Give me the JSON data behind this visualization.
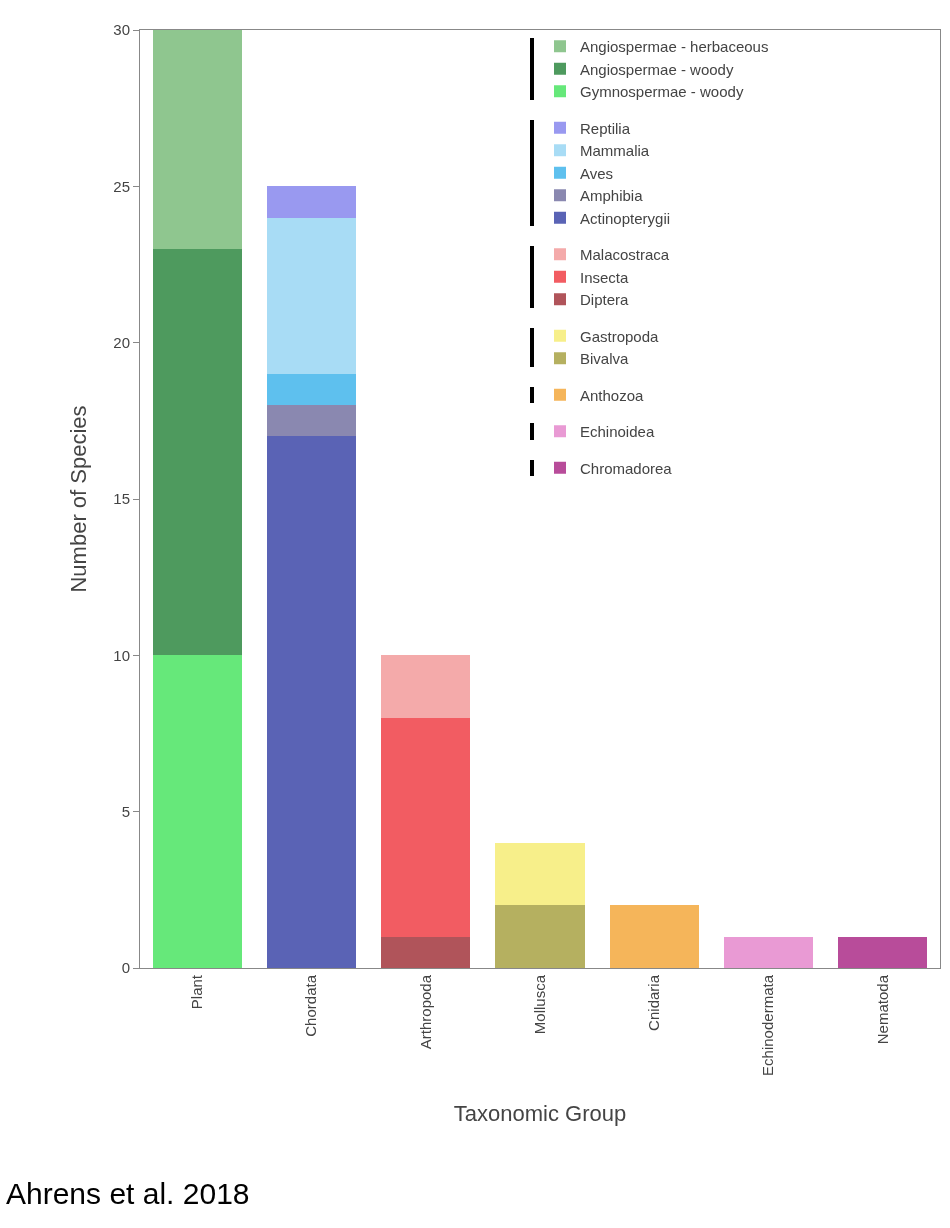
{
  "chart_data": {
    "type": "bar",
    "stacked": true,
    "xlabel": "Taxonomic Group",
    "ylabel": "Number of Species",
    "categories": [
      "Plant",
      "Chordata",
      "Arthropoda",
      "Mollusca",
      "Cnidaria",
      "Echinodermata",
      "Nematoda"
    ],
    "series": [
      {
        "name": "Gymnospermae - woody",
        "color": "#66e87a",
        "values": [
          10,
          null,
          null,
          null,
          null,
          null,
          null
        ]
      },
      {
        "name": "Angiospermae - woody",
        "color": "#4e9a5e",
        "values": [
          13,
          null,
          null,
          null,
          null,
          null,
          null
        ]
      },
      {
        "name": "Angiospermae - herbaceous",
        "color": "#8fc68f",
        "values": [
          7,
          null,
          null,
          null,
          null,
          null,
          null
        ]
      },
      {
        "name": "Actinopterygii",
        "color": "#5a63b5",
        "values": [
          null,
          17,
          null,
          null,
          null,
          null,
          null
        ]
      },
      {
        "name": "Amphibia",
        "color": "#8a88b0",
        "values": [
          null,
          1,
          null,
          null,
          null,
          null,
          null
        ]
      },
      {
        "name": "Aves",
        "color": "#5ec0ee",
        "values": [
          null,
          1,
          null,
          null,
          null,
          null,
          null
        ]
      },
      {
        "name": "Mammalia",
        "color": "#a8dcf5",
        "values": [
          null,
          5,
          null,
          null,
          null,
          null,
          null
        ]
      },
      {
        "name": "Reptilia",
        "color": "#9999f0",
        "values": [
          null,
          1,
          null,
          null,
          null,
          null,
          null
        ]
      },
      {
        "name": "Diptera",
        "color": "#b0545a",
        "values": [
          null,
          null,
          1,
          null,
          null,
          null,
          null
        ]
      },
      {
        "name": "Insecta",
        "color": "#f25c62",
        "values": [
          null,
          null,
          7,
          null,
          null,
          null,
          null
        ]
      },
      {
        "name": "Malacostraca",
        "color": "#f4aaaa",
        "values": [
          null,
          null,
          2,
          null,
          null,
          null,
          null
        ]
      },
      {
        "name": "Bivalva",
        "color": "#b5b060",
        "values": [
          null,
          null,
          null,
          2,
          null,
          null,
          null
        ]
      },
      {
        "name": "Gastropoda",
        "color": "#f7ef8a",
        "values": [
          null,
          null,
          null,
          2,
          null,
          null,
          null
        ]
      },
      {
        "name": "Anthozoa",
        "color": "#f5b55a",
        "values": [
          null,
          null,
          null,
          null,
          2,
          null,
          null
        ]
      },
      {
        "name": "Echinoidea",
        "color": "#e99ad4",
        "values": [
          null,
          null,
          null,
          null,
          null,
          1,
          null
        ]
      },
      {
        "name": "Chromadorea",
        "color": "#b84c9a",
        "values": [
          null,
          null,
          null,
          null,
          null,
          null,
          1
        ]
      }
    ],
    "ylim": [
      0,
      30
    ],
    "yticks": [
      0,
      5,
      10,
      15,
      20,
      25,
      30
    ],
    "grid": false,
    "legend": "top right",
    "annotations": [
      "Ahrens et al. 2018"
    ]
  }
}
